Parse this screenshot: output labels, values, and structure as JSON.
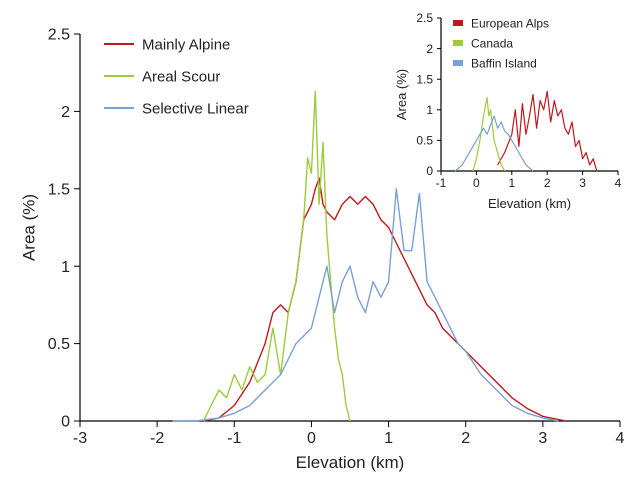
{
  "chart_data": [
    {
      "id": "main",
      "type": "line",
      "title": "",
      "xlabel": "Elevation (km)",
      "ylabel": "Area (%)",
      "xlim": [
        -3,
        4
      ],
      "ylim": [
        0,
        2.5
      ],
      "xticks": [
        -3,
        -2,
        -1,
        0,
        1,
        2,
        3,
        4
      ],
      "xtick_labels": [
        "-3",
        "-2",
        "-1",
        "0",
        "1",
        "2",
        "3",
        "4"
      ],
      "yticks": [
        0,
        0.5,
        1,
        1.5,
        2,
        2.5
      ],
      "ytick_labels": [
        "0",
        "0.5",
        "1",
        "1.5",
        "2",
        "2.5"
      ],
      "grid": false,
      "legend_position": "top-left",
      "series": [
        {
          "name": "Mainly Alpine",
          "color": "#c0181e",
          "x": [
            -1.4,
            -1.2,
            -1.0,
            -0.8,
            -0.6,
            -0.5,
            -0.4,
            -0.3,
            -0.2,
            -0.1,
            0.0,
            0.05,
            0.1,
            0.15,
            0.2,
            0.3,
            0.4,
            0.5,
            0.6,
            0.7,
            0.8,
            0.9,
            1.0,
            1.1,
            1.2,
            1.3,
            1.4,
            1.5,
            1.6,
            1.7,
            1.8,
            1.9,
            2.0,
            2.2,
            2.4,
            2.6,
            2.8,
            3.0,
            3.3
          ],
          "y": [
            0.0,
            0.02,
            0.1,
            0.25,
            0.5,
            0.7,
            0.75,
            0.7,
            0.9,
            1.3,
            1.4,
            1.5,
            1.57,
            1.4,
            1.35,
            1.3,
            1.4,
            1.45,
            1.4,
            1.45,
            1.4,
            1.3,
            1.25,
            1.15,
            1.05,
            0.95,
            0.85,
            0.75,
            0.7,
            0.6,
            0.55,
            0.5,
            0.45,
            0.35,
            0.25,
            0.15,
            0.08,
            0.03,
            0.0
          ]
        },
        {
          "name": "Areal Scour",
          "color": "#9ccb3b",
          "x": [
            -1.4,
            -1.3,
            -1.2,
            -1.1,
            -1.0,
            -0.9,
            -0.8,
            -0.7,
            -0.6,
            -0.5,
            -0.4,
            -0.3,
            -0.2,
            -0.1,
            -0.05,
            0.0,
            0.05,
            0.1,
            0.15,
            0.2,
            0.25,
            0.3,
            0.35,
            0.4,
            0.45,
            0.5
          ],
          "y": [
            0.0,
            0.1,
            0.2,
            0.15,
            0.3,
            0.2,
            0.35,
            0.25,
            0.3,
            0.6,
            0.3,
            0.7,
            0.9,
            1.3,
            1.7,
            1.6,
            2.13,
            1.4,
            1.8,
            1.2,
            0.9,
            0.6,
            0.4,
            0.3,
            0.1,
            0.0
          ]
        },
        {
          "name": "Selective Linear",
          "color": "#7aa0d4",
          "x": [
            -1.8,
            -1.5,
            -1.2,
            -1.0,
            -0.8,
            -0.6,
            -0.4,
            -0.2,
            0.0,
            0.1,
            0.2,
            0.3,
            0.4,
            0.5,
            0.6,
            0.7,
            0.8,
            0.9,
            1.0,
            1.1,
            1.2,
            1.3,
            1.4,
            1.5,
            1.6,
            1.7,
            1.8,
            1.9,
            2.0,
            2.2,
            2.4,
            2.6,
            2.8,
            3.0,
            3.2
          ],
          "y": [
            0.0,
            0.0,
            0.02,
            0.05,
            0.1,
            0.2,
            0.3,
            0.5,
            0.6,
            0.8,
            1.0,
            0.7,
            0.9,
            1.0,
            0.8,
            0.7,
            0.9,
            0.8,
            0.9,
            1.5,
            1.1,
            1.1,
            1.47,
            0.9,
            0.8,
            0.7,
            0.6,
            0.5,
            0.45,
            0.3,
            0.2,
            0.1,
            0.05,
            0.02,
            0.0
          ]
        }
      ]
    },
    {
      "id": "inset",
      "type": "line",
      "title": "",
      "xlabel": "Elevation (km)",
      "ylabel": "Area (%)",
      "xlim": [
        -1,
        4
      ],
      "ylim": [
        0,
        2.5
      ],
      "xticks": [
        -1,
        0,
        1,
        2,
        3,
        4
      ],
      "xtick_labels": [
        "-1",
        "0",
        "1",
        "2",
        "3",
        "4"
      ],
      "yticks": [
        0,
        0.5,
        1,
        1.5,
        2,
        2.5
      ],
      "ytick_labels": [
        "0",
        "0.5",
        "1",
        "1.5",
        "2",
        "2.5"
      ],
      "grid": false,
      "legend_position": "top-right",
      "series": [
        {
          "name": "European Alps",
          "color": "#c0181e",
          "x": [
            0.6,
            0.8,
            1.0,
            1.1,
            1.2,
            1.3,
            1.4,
            1.5,
            1.6,
            1.7,
            1.8,
            1.9,
            2.0,
            2.1,
            2.2,
            2.3,
            2.4,
            2.5,
            2.6,
            2.7,
            2.8,
            2.9,
            3.0,
            3.1,
            3.2,
            3.3,
            3.4
          ],
          "y": [
            0.1,
            0.3,
            0.6,
            1.0,
            0.4,
            1.1,
            0.6,
            0.9,
            1.25,
            0.7,
            1.15,
            1.0,
            1.3,
            0.8,
            1.15,
            0.9,
            1.0,
            0.7,
            0.6,
            0.8,
            0.4,
            0.5,
            0.2,
            0.3,
            0.1,
            0.2,
            0.0
          ]
        },
        {
          "name": "Canada",
          "color": "#9ccb3b",
          "x": [
            -0.1,
            0.0,
            0.1,
            0.2,
            0.3,
            0.35,
            0.4,
            0.5,
            0.6,
            0.7,
            0.8
          ],
          "y": [
            0.0,
            0.2,
            0.5,
            0.9,
            1.2,
            0.9,
            1.0,
            0.5,
            0.3,
            0.1,
            0.0
          ]
        },
        {
          "name": "Baffin Island",
          "color": "#7aa0d4",
          "x": [
            -0.6,
            -0.4,
            -0.2,
            0.0,
            0.1,
            0.2,
            0.3,
            0.4,
            0.5,
            0.6,
            0.7,
            0.8,
            0.9,
            1.0,
            1.1,
            1.2,
            1.3,
            1.4,
            1.5,
            1.6
          ],
          "y": [
            0.0,
            0.1,
            0.3,
            0.5,
            0.6,
            0.7,
            0.6,
            0.75,
            0.9,
            0.7,
            0.8,
            0.65,
            0.6,
            0.5,
            0.4,
            0.3,
            0.2,
            0.1,
            0.05,
            0.0
          ]
        }
      ]
    }
  ]
}
